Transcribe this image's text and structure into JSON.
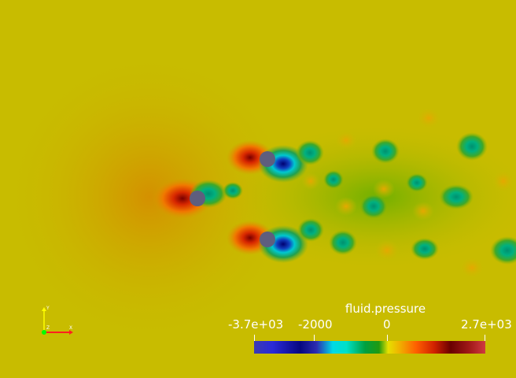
{
  "scene": {
    "field_name": "fluid.pressure",
    "background_color": "#c8bc00"
  },
  "colorbar": {
    "title": "fluid.pressure",
    "tick_labels": [
      "-3.7e+03",
      "-2000",
      "0",
      "2.7e+03"
    ],
    "range": [
      -3700,
      2700
    ],
    "colors": [
      "#3b3bb3",
      "#070780",
      "#00d9e6",
      "#00a040",
      "#e6e000",
      "#ff6000",
      "#6a0000",
      "#d03a40"
    ]
  },
  "axes_widget": {
    "x_label": "X",
    "y_label": "Y",
    "z_label": "Z",
    "x_color": "#ff2020",
    "y_color": "#ffff00",
    "z_color": "#00ff00"
  },
  "icons": [
    "cylinder-obstacle",
    "orientation-axes"
  ]
}
